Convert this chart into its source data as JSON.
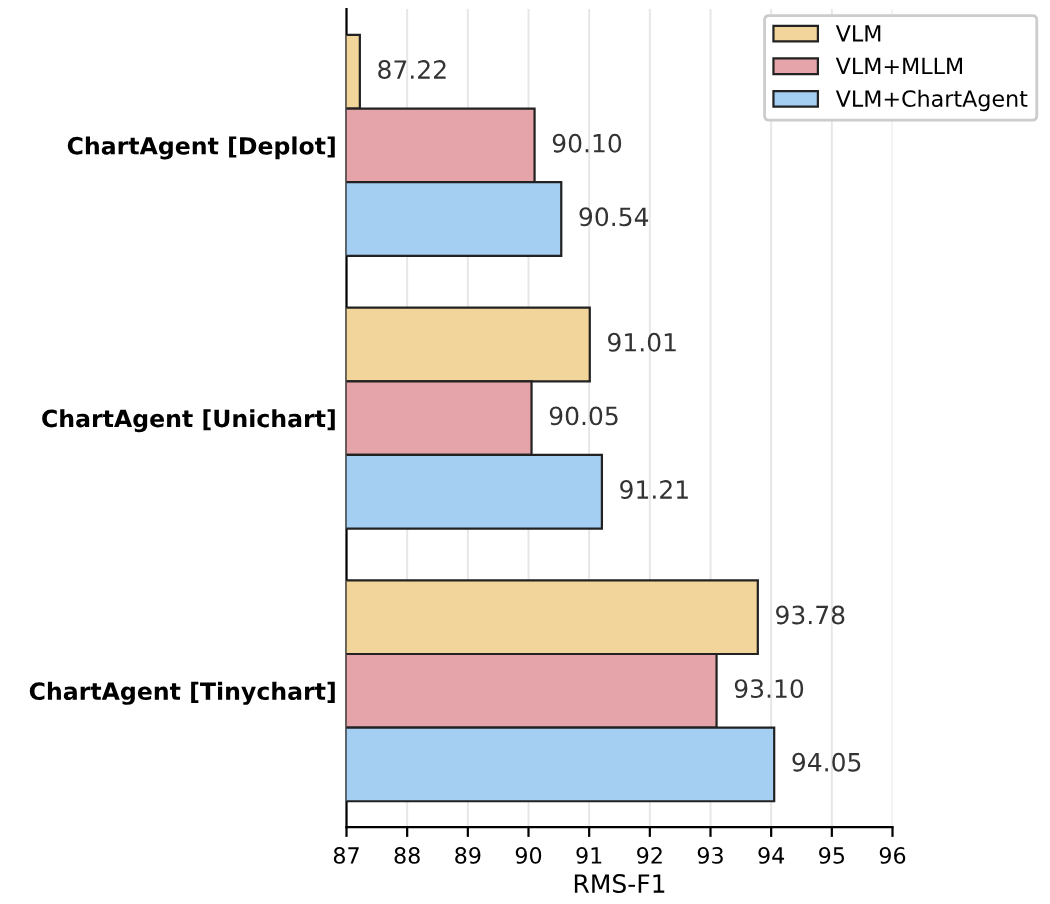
{
  "chart_data": {
    "type": "bar",
    "orientation": "horizontal",
    "xlabel": "RMS-F1",
    "categories": [
      "ChartAgent [Deplot]",
      "ChartAgent [Unichart]",
      "ChartAgent [Tinychart]"
    ],
    "series": [
      {
        "name": "VLM",
        "color": "#f2d59b",
        "values": [
          87.22,
          91.01,
          93.78
        ],
        "value_labels": [
          "87.22",
          "91.01",
          "93.78"
        ]
      },
      {
        "name": "VLM+MLLM",
        "color": "#e4a4a9",
        "values": [
          90.1,
          90.05,
          93.1
        ],
        "value_labels": [
          "90.10",
          "90.05",
          "93.10"
        ]
      },
      {
        "name": "VLM+ChartAgent",
        "color": "#a4cef2",
        "values": [
          90.54,
          91.21,
          94.05
        ],
        "value_labels": [
          "90.54",
          "91.21",
          "94.05"
        ]
      }
    ],
    "xlim": [
      87,
      96
    ],
    "xticks": [
      87,
      88,
      89,
      90,
      91,
      92,
      93,
      94,
      95,
      96
    ],
    "grid": "x",
    "legend": "top right"
  }
}
